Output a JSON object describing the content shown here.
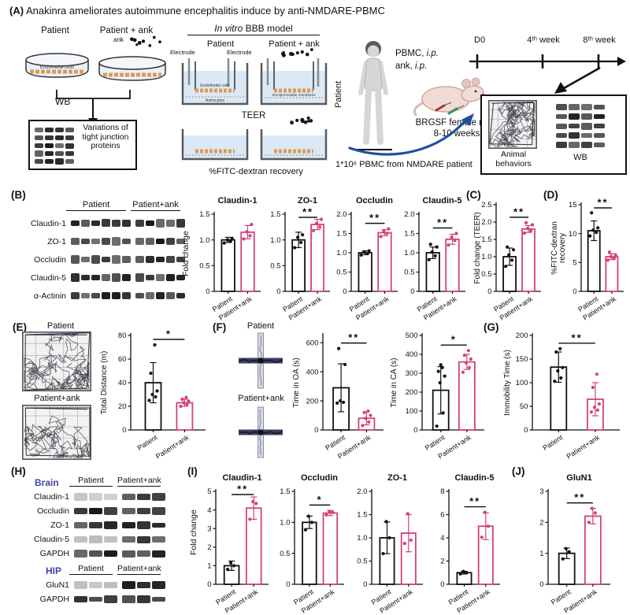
{
  "figure_title": "Anakinra ameliorates autoimmune encephalitis induce by anti-NMDARE-PBMC",
  "colors": {
    "patient": "#111111",
    "ank": "#d4417c",
    "blue_label": "#4343b0",
    "arrow_blue": "#1e4f9e",
    "band_orange": "#dd9a58",
    "liquid": "#dbe9f6"
  },
  "panelA": {
    "letter": "(A)",
    "dish1_label": "Patient",
    "dish2_label": "Patient + ank",
    "ank_label": "ank",
    "dish_content": "Endothelial cells",
    "wb_arrow_label": "WB",
    "wb_box_text": "Variations of tight junction proteins",
    "bbb_title_italic": "In vitro",
    "bbb_title_rest": " BBB model",
    "bbb_col1": "Patient",
    "bbb_col2": "Patient + ank",
    "electrode_left": "Electrode",
    "electrode_right": "Electrode",
    "well_endothelial": "Endothelial cells",
    "well_astrocytes": "Astrocytes",
    "well_membrane": "Semipermeable membrane",
    "teer_label": "TEER",
    "fitc_label": "%FITC-dextran recovery",
    "human_label": "Patient",
    "inj1_prefix": "PBMC,",
    "inj1_route": "i.p.",
    "inj2_prefix": "ank,",
    "inj2_route": "i.p.",
    "mice_line1": "BRGSF female mice",
    "mice_line2": "8-10 weeks",
    "timeline": [
      "D0",
      "4ᵗʰ week",
      "8ᵗʰ week"
    ],
    "box_behaviors": "Animal behaviors",
    "box_wb": "WB",
    "pbmc_note": "1*10⁶ PBMC from NMDARE patient"
  },
  "panelB": {
    "label": "(B)",
    "shared_ylabel": "Fold change"
  },
  "panelC": {
    "label": "(C)"
  },
  "panelD": {
    "label": "(D)"
  },
  "panelE": {
    "label": "(E)",
    "img1_label": "Patient",
    "img2_label": "Patient+ank"
  },
  "panelF": {
    "label": "(F)",
    "img1_label": "Patient",
    "img2_label": "Patient+ank"
  },
  "panelG": {
    "label": "(G)"
  },
  "panelH": {
    "label": "(H)",
    "group1": "Brain",
    "group2": "HIP"
  },
  "panelI": {
    "label": "(I)",
    "shared_ylabel": "Fold change"
  },
  "panelJ": {
    "label": "(J)"
  },
  "blots": {
    "b": {
      "headers": [
        "Patient",
        "Patient+ank"
      ],
      "groups": [
        6,
        5
      ],
      "rows": [
        {
          "label": "Claudin-1"
        },
        {
          "label": "ZO-1"
        },
        {
          "label": "Occludin"
        },
        {
          "label": "Claudin-5"
        },
        {
          "label": "α-Actinin"
        }
      ]
    },
    "h_brain": {
      "headers": [
        "Patient",
        "Patient+ank"
      ],
      "groups": [
        3,
        3
      ],
      "rows": [
        {
          "label": "Claudin-1",
          "leftFaint": true
        },
        {
          "label": "Occludin"
        },
        {
          "label": "ZO-1"
        },
        {
          "label": "Claudin-5",
          "leftFaint": true
        },
        {
          "label": "GAPDH"
        }
      ]
    },
    "h_hip": {
      "headers": [
        "Patient",
        "Patient+ank"
      ],
      "groups": [
        3,
        3
      ],
      "rows": [
        {
          "label": "GluN1",
          "leftFaint": true
        },
        {
          "label": "GAPDH"
        }
      ]
    },
    "mini_a": {
      "headers": [],
      "groups": [
        4
      ],
      "rows": [
        {
          "label": ""
        },
        {
          "label": ""
        },
        {
          "label": ""
        },
        {
          "label": ""
        },
        {
          "label": ""
        }
      ]
    },
    "mini_box": {
      "headers": [],
      "groups": [
        4
      ],
      "rows": [
        {
          "label": ""
        },
        {
          "label": ""
        },
        {
          "label": ""
        },
        {
          "label": ""
        },
        {
          "label": ""
        }
      ]
    }
  },
  "chart_data": [
    {
      "id": "b_claudin1",
      "type": "bar",
      "title": "Claudin-1",
      "ylabel": "",
      "ymax": 1.5,
      "yticks": [
        0,
        0.5,
        1,
        1.5
      ],
      "ytick_labels": [
        "0",
        "0.5",
        "1.0",
        "1.5"
      ],
      "categories": [
        "Patient",
        "Patient+ank"
      ],
      "values": [
        1.0,
        1.15
      ],
      "errors": [
        0.05,
        0.13
      ],
      "dots": [
        [
          0.94,
          0.97,
          1.0,
          1.03
        ],
        [
          1.02,
          1.08,
          1.16,
          1.3
        ]
      ],
      "sig": ""
    },
    {
      "id": "b_zo1",
      "type": "bar",
      "title": "ZO-1",
      "ylabel": "",
      "ymax": 1.5,
      "yticks": [
        0,
        0.5,
        1,
        1.5
      ],
      "ytick_labels": [
        "0",
        "0.5",
        "1.0",
        "1.5"
      ],
      "categories": [
        "Patient",
        "Patient+ank"
      ],
      "values": [
        1.0,
        1.3
      ],
      "errors": [
        0.15,
        0.1
      ],
      "dots": [
        [
          0.85,
          0.95,
          1.05,
          1.1
        ],
        [
          1.18,
          1.25,
          1.32,
          1.4
        ]
      ],
      "sig": "**"
    },
    {
      "id": "b_occludin",
      "type": "bar",
      "title": "Occludin",
      "ylabel": "",
      "ymax": 2,
      "yticks": [
        0,
        0.5,
        1,
        1.5,
        2
      ],
      "ytick_labels": [
        "0",
        "0.5",
        "1.0",
        "1.5",
        "2.0"
      ],
      "categories": [
        "Patient",
        "Patient+ank"
      ],
      "values": [
        1.0,
        1.52
      ],
      "errors": [
        0.05,
        0.08
      ],
      "dots": [
        [
          0.94,
          0.98,
          1.02,
          1.05
        ],
        [
          1.42,
          1.5,
          1.55,
          1.62
        ]
      ],
      "sig": "**"
    },
    {
      "id": "b_claudin5",
      "type": "bar",
      "title": "Claudin-5",
      "ylabel": "",
      "ymax": 2,
      "yticks": [
        0,
        0.5,
        1,
        1.5,
        2
      ],
      "ytick_labels": [
        "0",
        "0.5",
        "1.0",
        "1.5",
        "2.0"
      ],
      "categories": [
        "Patient",
        "Patient+ank"
      ],
      "values": [
        1.0,
        1.35
      ],
      "errors": [
        0.15,
        0.13
      ],
      "dots": [
        [
          0.82,
          0.92,
          1.02,
          1.15,
          1.22
        ],
        [
          1.2,
          1.32,
          1.4,
          1.5
        ]
      ],
      "sig": "**"
    },
    {
      "id": "c_teer",
      "type": "bar",
      "title": "",
      "ylabel": "Fold change (TEER)",
      "ymax": 2.5,
      "yticks": [
        0,
        0.5,
        1,
        1.5,
        2,
        2.5
      ],
      "ytick_labels": [
        "0",
        "0.5",
        "1.0",
        "1.5",
        "2.0",
        "2.5"
      ],
      "categories": [
        "Patient",
        "Patient+ank"
      ],
      "values": [
        1.0,
        1.8
      ],
      "errors": [
        0.25,
        0.1
      ],
      "dots": [
        [
          0.72,
          0.9,
          1.05,
          1.2,
          1.28
        ],
        [
          1.68,
          1.75,
          1.82,
          1.92,
          1.98
        ]
      ],
      "sig": "**"
    },
    {
      "id": "d_fitc",
      "type": "bar",
      "title": "",
      "ylabel_lines": [
        "%FITC-dextran",
        "recovery"
      ],
      "ymax": 15,
      "yticks": [
        0,
        5,
        10,
        15
      ],
      "ytick_labels": [
        "0",
        "5",
        "10",
        "15"
      ],
      "categories": [
        "Patient",
        "Patient+ank"
      ],
      "values": [
        10.5,
        6
      ],
      "errors": [
        1.7,
        0.5
      ],
      "dots": [
        [
          9.6,
          10.2,
          10.6,
          11,
          13.6
        ],
        [
          5.4,
          5.7,
          6,
          6.3,
          6.8
        ]
      ],
      "sig": "**"
    },
    {
      "id": "e_dist",
      "type": "bar",
      "title": "",
      "ylabel": "Total Distance (m)",
      "ymax": 80,
      "yticks": [
        0,
        20,
        40,
        60,
        80
      ],
      "ytick_labels": [
        "0",
        "20",
        "40",
        "60",
        "80"
      ],
      "categories": [
        "Patient",
        "Patient+ank"
      ],
      "values": [
        40,
        23
      ],
      "errors": [
        17,
        3
      ],
      "dots": [
        [
          25,
          28,
          30,
          33,
          48,
          72
        ],
        [
          20,
          21.5,
          23,
          24.5,
          26,
          27.5
        ]
      ],
      "sig": "*"
    },
    {
      "id": "f_oa",
      "type": "bar",
      "title": "",
      "ylabel": "Time in OA (s)",
      "ymax": 650,
      "yticks": [
        0,
        200,
        400,
        600
      ],
      "ytick_labels": [
        "0",
        "200",
        "400",
        "600"
      ],
      "categories": [
        "Patient",
        "Patient+ank"
      ],
      "values": [
        290,
        80
      ],
      "errors": [
        165,
        45
      ],
      "dots": [
        [
          185,
          190,
          200,
          450,
          560
        ],
        [
          30,
          55,
          80,
          100,
          120,
          130
        ]
      ],
      "sig": "**"
    },
    {
      "id": "f_ca",
      "type": "bar",
      "title": "",
      "ylabel": "Time in CA (s)",
      "ymax": 500,
      "yticks": [
        0,
        100,
        200,
        300,
        400,
        500
      ],
      "ytick_labels": [
        "0",
        "100",
        "200",
        "300",
        "400",
        "500"
      ],
      "categories": [
        "Patient",
        "Patient+ank"
      ],
      "values": [
        210,
        360
      ],
      "errors": [
        125,
        40
      ],
      "dots": [
        [
          20,
          90,
          250,
          285,
          310,
          330,
          345
        ],
        [
          305,
          330,
          355,
          375,
          395,
          420
        ]
      ],
      "sig": "*"
    },
    {
      "id": "g_immob",
      "type": "bar",
      "title": "",
      "ylabel": "Immobility Time (s)",
      "ymax": 200,
      "yticks": [
        0,
        50,
        100,
        150,
        200
      ],
      "ytick_labels": [
        "0",
        "50",
        "100",
        "150",
        "200"
      ],
      "categories": [
        "Patient",
        "Patient+ank"
      ],
      "values": [
        133,
        65
      ],
      "errors": [
        32,
        35
      ],
      "dots": [
        [
          103,
          110,
          125,
          132,
          165,
          172
        ],
        [
          38,
          42,
          48,
          55,
          90,
          118
        ]
      ],
      "sig": "**"
    },
    {
      "id": "i_claudin1",
      "type": "bar",
      "title": "Claudin-1",
      "ylabel": "",
      "ymax": 5,
      "yticks": [
        0,
        1,
        2,
        3,
        4,
        5
      ],
      "ytick_labels": [
        "0",
        "1",
        "2",
        "3",
        "4",
        "5"
      ],
      "categories": [
        "Patient",
        "Patient+ank"
      ],
      "values": [
        1.0,
        4.1
      ],
      "errors": [
        0.25,
        0.6
      ],
      "dots": [
        [
          0.8,
          1.0,
          1.15
        ],
        [
          3.5,
          4.35,
          4.45
        ]
      ],
      "sig": "**"
    },
    {
      "id": "i_occludin",
      "type": "bar",
      "title": "Occludin",
      "ylabel": "",
      "ymax": 1.5,
      "yticks": [
        0,
        0.5,
        1,
        1.5
      ],
      "ytick_labels": [
        "0",
        "0.5",
        "1.0",
        "1.5"
      ],
      "categories": [
        "Patient",
        "Patient+ank"
      ],
      "values": [
        1.0,
        1.15
      ],
      "errors": [
        0.1,
        0.04
      ],
      "dots": [
        [
          0.88,
          1.0,
          1.1
        ],
        [
          1.12,
          1.16,
          1.18
        ]
      ],
      "sig": "*"
    },
    {
      "id": "i_zo1",
      "type": "bar",
      "title": "ZO-1",
      "ylabel": "",
      "ymax": 2,
      "yticks": [
        0,
        0.5,
        1,
        1.5,
        2
      ],
      "ytick_labels": [
        "0",
        "0.5",
        "1.0",
        "1.5",
        "2.0"
      ],
      "categories": [
        "Patient",
        "Patient+ank"
      ],
      "values": [
        1.0,
        1.1
      ],
      "errors": [
        0.34,
        0.4
      ],
      "dots": [
        [
          0.66,
          1.0,
          1.35
        ],
        [
          0.88,
          0.95,
          1.52
        ]
      ],
      "sig": ""
    },
    {
      "id": "i_claudin5",
      "type": "bar",
      "title": "Claudin-5",
      "ylabel": "",
      "ymax": 8,
      "yticks": [
        0,
        2,
        4,
        6,
        8
      ],
      "ytick_labels": [
        "0",
        "2",
        "4",
        "6",
        "8"
      ],
      "categories": [
        "Patient",
        "Patient+ank"
      ],
      "values": [
        1.0,
        5.0
      ],
      "errors": [
        0.12,
        1.15
      ],
      "dots": [
        [
          0.9,
          1.0,
          1.1
        ],
        [
          4.05,
          5.0,
          6.2
        ]
      ],
      "sig": "**"
    },
    {
      "id": "j_glun1",
      "type": "bar",
      "title": "GluN1",
      "ylabel": "",
      "ymax": 3,
      "yticks": [
        0,
        1,
        2,
        3
      ],
      "ytick_labels": [
        "0",
        "1",
        "2",
        "3"
      ],
      "categories": [
        "Patient",
        "Patient+ank"
      ],
      "values": [
        1.0,
        2.2
      ],
      "errors": [
        0.17,
        0.25
      ],
      "dots": [
        [
          0.82,
          1.05,
          1.15
        ],
        [
          2.0,
          2.3,
          2.45
        ]
      ],
      "sig": "**"
    }
  ]
}
